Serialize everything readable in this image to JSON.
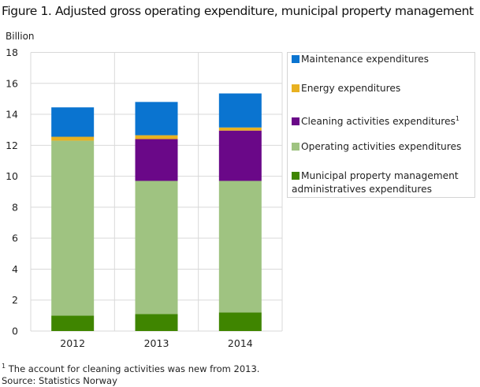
{
  "figure": {
    "title": "Figure 1. Adjusted gross operating expenditure, municipal property management",
    "footnote_marker": "1",
    "footnote_text": " The account for cleaning activities was new from 2013.",
    "source": "Source: Statistics Norway"
  },
  "chart_data": {
    "type": "bar",
    "stacked": true,
    "title": "Figure 1. Adjusted gross operating expenditure, municipal property management",
    "xlabel": "",
    "ylabel": "Billion",
    "ylim": [
      0,
      18
    ],
    "yticks": [
      0,
      2,
      4,
      6,
      8,
      10,
      12,
      14,
      16,
      18
    ],
    "ytick_labels": [
      "0",
      "2",
      "4",
      "6",
      "8",
      "10",
      "12",
      "14",
      "16",
      "18"
    ],
    "grid": true,
    "legend_position": "right",
    "categories": [
      "2012",
      "2013",
      "2014"
    ],
    "series": [
      {
        "name": "Municipal property management administratives expenditures",
        "color": "#3f8500",
        "values": [
          1.0,
          1.1,
          1.2
        ]
      },
      {
        "name": "Operating activities expenditures",
        "color": "#9fc381",
        "values": [
          11.3,
          8.6,
          8.5
        ]
      },
      {
        "name": "Cleaning activities expenditures",
        "footnote": "1",
        "color": "#6a0888",
        "values": [
          0,
          2.7,
          3.25
        ]
      },
      {
        "name": "Energy expenditures",
        "color": "#e8b121",
        "values": [
          0.25,
          0.25,
          0.2
        ]
      },
      {
        "name": "Maintenance expenditures",
        "color": "#0a74d0",
        "values": [
          1.9,
          2.15,
          2.2
        ]
      }
    ],
    "legend_order": [
      4,
      3,
      2,
      1,
      0
    ]
  }
}
